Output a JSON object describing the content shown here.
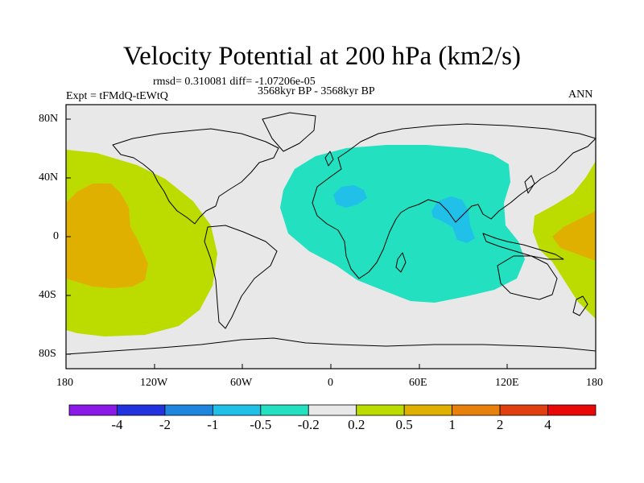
{
  "title": "Velocity Potential at 200 hPa (km2/s)",
  "stats": "rmsd= 0.310081 diff= -1.07206e-05",
  "left_label": "Expt = tFMdQ-tEWtQ",
  "center_label": "3568kyr BP - 3568kyr BP",
  "right_label": "ANN",
  "lat_ticks": [
    "80N",
    "40N",
    "0",
    "40S",
    "80S"
  ],
  "lon_ticks": [
    "180",
    "120W",
    "60W",
    "0",
    "60E",
    "120E",
    "180"
  ],
  "colorbar": {
    "colors": [
      "#8a1ae8",
      "#2233dd",
      "#1f86e0",
      "#20c0e8",
      "#22e0c0",
      "#e8e8e8",
      "#bcdc00",
      "#e0b000",
      "#e8800c",
      "#e04010",
      "#e80808"
    ],
    "labels": [
      "-4",
      "-2",
      "-1",
      "-0.5",
      "-0.2",
      "0.2",
      "0.5",
      "1",
      "2",
      "4"
    ]
  },
  "chart_data": {
    "type": "filled-contour-map",
    "variable": "Velocity Potential at 200 hPa",
    "units": "km2/s",
    "projection": "cylindrical equidistant",
    "lon_range": [
      -180,
      180
    ],
    "lat_range": [
      -90,
      90
    ],
    "levels": [
      -4,
      -2,
      -1,
      -0.5,
      -0.2,
      0.2,
      0.5,
      1,
      2,
      4
    ],
    "regions": [
      {
        "name": "central-pacific-positive",
        "level_band": "0.2 to 0.5",
        "color": "#bcdc00",
        "lon_center": -160,
        "lat_center": 5
      },
      {
        "name": "central-pacific-core",
        "level_band": "0.5 to 1",
        "color": "#e0b000",
        "lon_center": -165,
        "lat_center": 10
      },
      {
        "name": "western-pacific-positive",
        "level_band": "0.2 to 0.5",
        "color": "#bcdc00",
        "lon_center": 170,
        "lat_center": 0
      },
      {
        "name": "western-pacific-core",
        "level_band": "0.5 to 1",
        "color": "#e0b000",
        "lon_center": 175,
        "lat_center": 0
      },
      {
        "name": "africa-indian-ocean-negative",
        "level_band": "-0.5 to -0.2",
        "color": "#22e0c0",
        "lon_center": 40,
        "lat_center": 5
      },
      {
        "name": "sahara-min",
        "level_band": "-1 to -0.5",
        "color": "#20c0e8",
        "lon_center": 15,
        "lat_center": 30
      },
      {
        "name": "india-min",
        "level_band": "-1 to -0.5",
        "color": "#20c0e8",
        "lon_center": 82,
        "lat_center": 15
      }
    ]
  }
}
